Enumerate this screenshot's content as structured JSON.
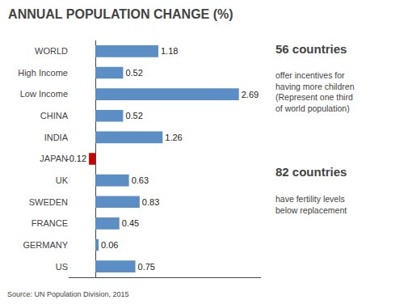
{
  "chart_data": {
    "type": "bar",
    "orientation": "horizontal",
    "title": "ANNUAL POPULATION CHANGE (%)",
    "categories": [
      "WORLD",
      "High Income",
      "Low Income",
      "CHINA",
      "INDIA",
      "JAPAN",
      "UK",
      "SWEDEN",
      "FRANCE",
      "GERMANY",
      "US"
    ],
    "values": [
      1.18,
      0.52,
      2.69,
      0.52,
      1.26,
      -0.12,
      0.63,
      0.83,
      0.45,
      0.06,
      0.75
    ],
    "colors": [
      "#5b8ec4",
      "#5b8ec4",
      "#5b8ec4",
      "#5b8ec4",
      "#5b8ec4",
      "#cc0000",
      "#5b8ec4",
      "#5b8ec4",
      "#5b8ec4",
      "#5b8ec4",
      "#5b8ec4"
    ],
    "xlim": [
      -0.5,
      3.1
    ],
    "tick_labels": "y",
    "grid": false,
    "data_labels": true,
    "annotations": [
      "56 countries",
      "offer incentives for\nhaving more children\n(Represent one third\nof world population)",
      "82 countries",
      "have fertility levels\nbelow replacement",
      "Source: UN Population Division, 2015"
    ]
  }
}
